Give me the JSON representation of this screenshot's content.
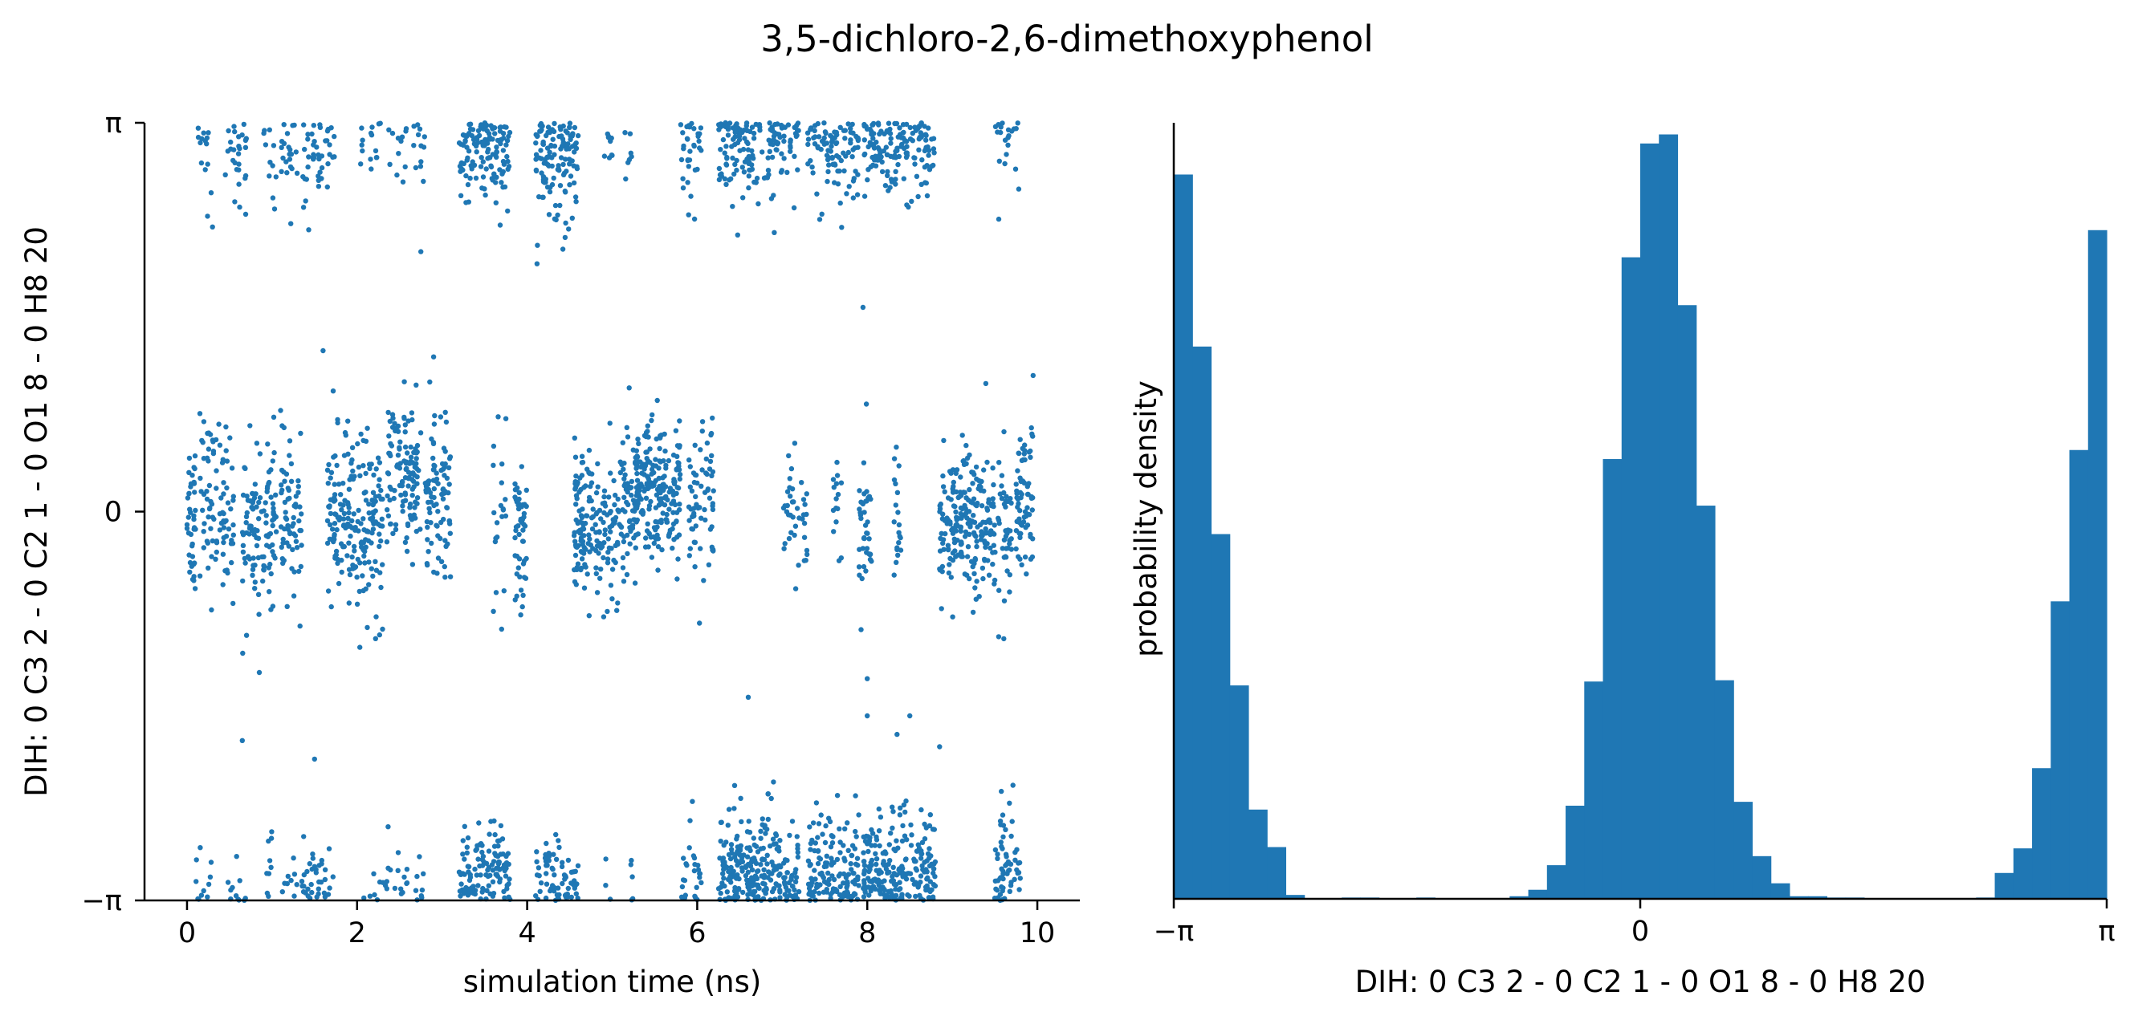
{
  "figure": {
    "title": "3,5-dichloro-2,6-dimethoxyphenol"
  },
  "colors": {
    "series": "#1f77b4",
    "axis": "#000000"
  },
  "chart_data": [
    {
      "type": "scatter",
      "xlabel": "simulation time (ns)",
      "ylabel": "DIH:  0 C3 2 -  0 C2 1 -  0 O1 8 -  0 H8 20",
      "xlim": [
        -0.5,
        10.5
      ],
      "ylim": [
        -3.14159,
        3.14159
      ],
      "xticks": [
        0,
        2,
        4,
        6,
        8,
        10
      ],
      "xticklabels": [
        "0",
        "2",
        "4",
        "6",
        "8",
        "10"
      ],
      "yticks": [
        -3.14159,
        0,
        3.14159
      ],
      "yticklabels": [
        "−π",
        "0",
        "π"
      ],
      "clusters": [
        {
          "x_start": 0.0,
          "x_end": 0.1,
          "center": 0.0,
          "spread": 0.35,
          "n": 40,
          "wrap": false
        },
        {
          "x_start": 0.15,
          "x_end": 0.55,
          "center": 0.05,
          "spread": 0.35,
          "n": 90,
          "wrap": false
        },
        {
          "x_start": 0.65,
          "x_end": 1.05,
          "center": -0.1,
          "spread": 0.3,
          "n": 110,
          "wrap": false
        },
        {
          "x_start": 1.1,
          "x_end": 1.25,
          "center": 0.0,
          "spread": 0.3,
          "n": 40,
          "wrap": false
        },
        {
          "x_start": 1.25,
          "x_end": 1.35,
          "center": -0.2,
          "spread": 0.3,
          "n": 25,
          "wrap": false
        },
        {
          "x_start": 1.1,
          "x_end": 1.3,
          "center": 3.05,
          "spread": 0.25,
          "n": 30,
          "wrap": true
        },
        {
          "x_start": 1.35,
          "x_end": 1.6,
          "center": 3.0,
          "spread": 0.3,
          "n": 60,
          "wrap": true
        },
        {
          "x_start": 1.65,
          "x_end": 2.3,
          "center": -0.1,
          "spread": 0.35,
          "n": 200,
          "wrap": false
        },
        {
          "x_start": 2.35,
          "x_end": 2.75,
          "center": 0.3,
          "spread": 0.3,
          "n": 120,
          "wrap": false
        },
        {
          "x_start": 2.8,
          "x_end": 3.1,
          "center": 0.1,
          "spread": 0.3,
          "n": 90,
          "wrap": false
        },
        {
          "x_start": 2.0,
          "x_end": 2.6,
          "center": 3.1,
          "spread": 0.25,
          "n": 50,
          "wrap": true
        },
        {
          "x_start": 2.65,
          "x_end": 2.8,
          "center": 3.1,
          "spread": 0.25,
          "n": 20,
          "wrap": true
        },
        {
          "x_start": 0.1,
          "x_end": 0.3,
          "center": 3.1,
          "spread": 0.25,
          "n": 25,
          "wrap": true
        },
        {
          "x_start": 0.45,
          "x_end": 0.7,
          "center": 3.0,
          "spread": 0.3,
          "n": 40,
          "wrap": true
        },
        {
          "x_start": 0.9,
          "x_end": 1.05,
          "center": 3.1,
          "spread": 0.25,
          "n": 20,
          "wrap": true
        },
        {
          "x_start": 1.6,
          "x_end": 1.75,
          "center": 3.1,
          "spread": 0.25,
          "n": 20,
          "wrap": true
        },
        {
          "x_start": 3.2,
          "x_end": 3.8,
          "center": 3.1,
          "spread": 0.3,
          "n": 260,
          "wrap": true
        },
        {
          "x_start": 3.85,
          "x_end": 4.0,
          "center": -0.2,
          "spread": 0.3,
          "n": 50,
          "wrap": false
        },
        {
          "x_start": 3.6,
          "x_end": 3.75,
          "center": 0.0,
          "spread": 0.35,
          "n": 20,
          "wrap": false
        },
        {
          "x_start": 4.1,
          "x_end": 4.6,
          "center": 3.0,
          "spread": 0.3,
          "n": 200,
          "wrap": true
        },
        {
          "x_start": 4.55,
          "x_end": 4.65,
          "center": -0.1,
          "spread": 0.3,
          "n": 15,
          "wrap": false
        },
        {
          "x_start": 4.9,
          "x_end": 5.0,
          "center": 3.1,
          "spread": 0.2,
          "n": 12,
          "wrap": true
        },
        {
          "x_start": 5.15,
          "x_end": 5.25,
          "center": 3.0,
          "spread": 0.25,
          "n": 12,
          "wrap": true
        },
        {
          "x_start": 4.55,
          "x_end": 5.25,
          "center": -0.1,
          "spread": 0.3,
          "n": 200,
          "wrap": false
        },
        {
          "x_start": 5.25,
          "x_end": 5.8,
          "center": 0.15,
          "spread": 0.3,
          "n": 220,
          "wrap": false
        },
        {
          "x_start": 5.9,
          "x_end": 6.2,
          "center": 0.0,
          "spread": 0.3,
          "n": 70,
          "wrap": false
        },
        {
          "x_start": 5.8,
          "x_end": 6.05,
          "center": 3.0,
          "spread": 0.3,
          "n": 60,
          "wrap": true
        },
        {
          "x_start": 6.25,
          "x_end": 7.2,
          "center": 3.25,
          "spread": 0.3,
          "n": 420,
          "wrap": true
        },
        {
          "x_start": 7.0,
          "x_end": 7.3,
          "center": 0.0,
          "spread": 0.3,
          "n": 40,
          "wrap": false
        },
        {
          "x_start": 7.3,
          "x_end": 7.9,
          "center": 3.2,
          "spread": 0.3,
          "n": 240,
          "wrap": true
        },
        {
          "x_start": 7.6,
          "x_end": 7.7,
          "center": 0.0,
          "spread": 0.25,
          "n": 15,
          "wrap": false
        },
        {
          "x_start": 7.9,
          "x_end": 8.05,
          "center": -0.2,
          "spread": 0.3,
          "n": 40,
          "wrap": false
        },
        {
          "x_start": 7.95,
          "x_end": 8.8,
          "center": 3.2,
          "spread": 0.3,
          "n": 380,
          "wrap": true
        },
        {
          "x_start": 8.3,
          "x_end": 8.4,
          "center": -0.1,
          "spread": 0.3,
          "n": 20,
          "wrap": false
        },
        {
          "x_start": 8.85,
          "x_end": 9.7,
          "center": -0.1,
          "spread": 0.3,
          "n": 260,
          "wrap": false
        },
        {
          "x_start": 9.5,
          "x_end": 9.8,
          "center": 3.3,
          "spread": 0.3,
          "n": 80,
          "wrap": true
        },
        {
          "x_start": 9.75,
          "x_end": 9.95,
          "center": 0.1,
          "spread": 0.3,
          "n": 70,
          "wrap": false
        }
      ],
      "outliers": [
        {
          "x": 0.3,
          "y": 2.3
        },
        {
          "x": 2.75,
          "y": 2.1
        },
        {
          "x": 7.95,
          "y": 1.65
        },
        {
          "x": 0.7,
          "y": -1.0
        },
        {
          "x": 0.85,
          "y": -1.3
        },
        {
          "x": 1.6,
          "y": 1.3
        },
        {
          "x": 2.9,
          "y": 1.25
        },
        {
          "x": 5.2,
          "y": 1.0
        },
        {
          "x": 9.95,
          "y": 1.1
        },
        {
          "x": 0.65,
          "y": -1.85
        },
        {
          "x": 1.5,
          "y": -2.0
        },
        {
          "x": 6.6,
          "y": -1.5
        },
        {
          "x": 8.0,
          "y": -1.35
        },
        {
          "x": 8.0,
          "y": -1.65
        },
        {
          "x": 8.5,
          "y": -1.65
        },
        {
          "x": 8.85,
          "y": -1.9
        },
        {
          "x": 8.35,
          "y": -1.8
        },
        {
          "x": 3.7,
          "y": -0.95
        },
        {
          "x": 4.9,
          "y": -0.85
        },
        {
          "x": 2.3,
          "y": -0.95
        }
      ]
    },
    {
      "type": "bar",
      "xlabel": "DIH:  0 C3 2 -  0 C2 1 -  0 O1 8 -  0 H8 20",
      "ylabel": "probability density",
      "xlim": [
        -3.14159,
        3.14159
      ],
      "xticks": [
        -3.14159,
        0,
        3.14159
      ],
      "xticklabels": [
        "−π",
        "0",
        "π"
      ],
      "nbins": 50,
      "ylim": [
        0,
        0.6
      ],
      "values": [
        0.56,
        0.427,
        0.282,
        0.165,
        0.069,
        0.04,
        0.003,
        0,
        0,
        0.001,
        0.001,
        0,
        0,
        0.001,
        0,
        0,
        0,
        0,
        0.002,
        0.007,
        0.026,
        0.072,
        0.168,
        0.34,
        0.496,
        0.584,
        0.591,
        0.459,
        0.304,
        0.169,
        0.075,
        0.033,
        0.012,
        0.002,
        0.002,
        0.001,
        0.001,
        0,
        0,
        0,
        0,
        0,
        0,
        0.001,
        0.02,
        0.039,
        0.101,
        0.23,
        0.347,
        0.517
      ]
    }
  ]
}
